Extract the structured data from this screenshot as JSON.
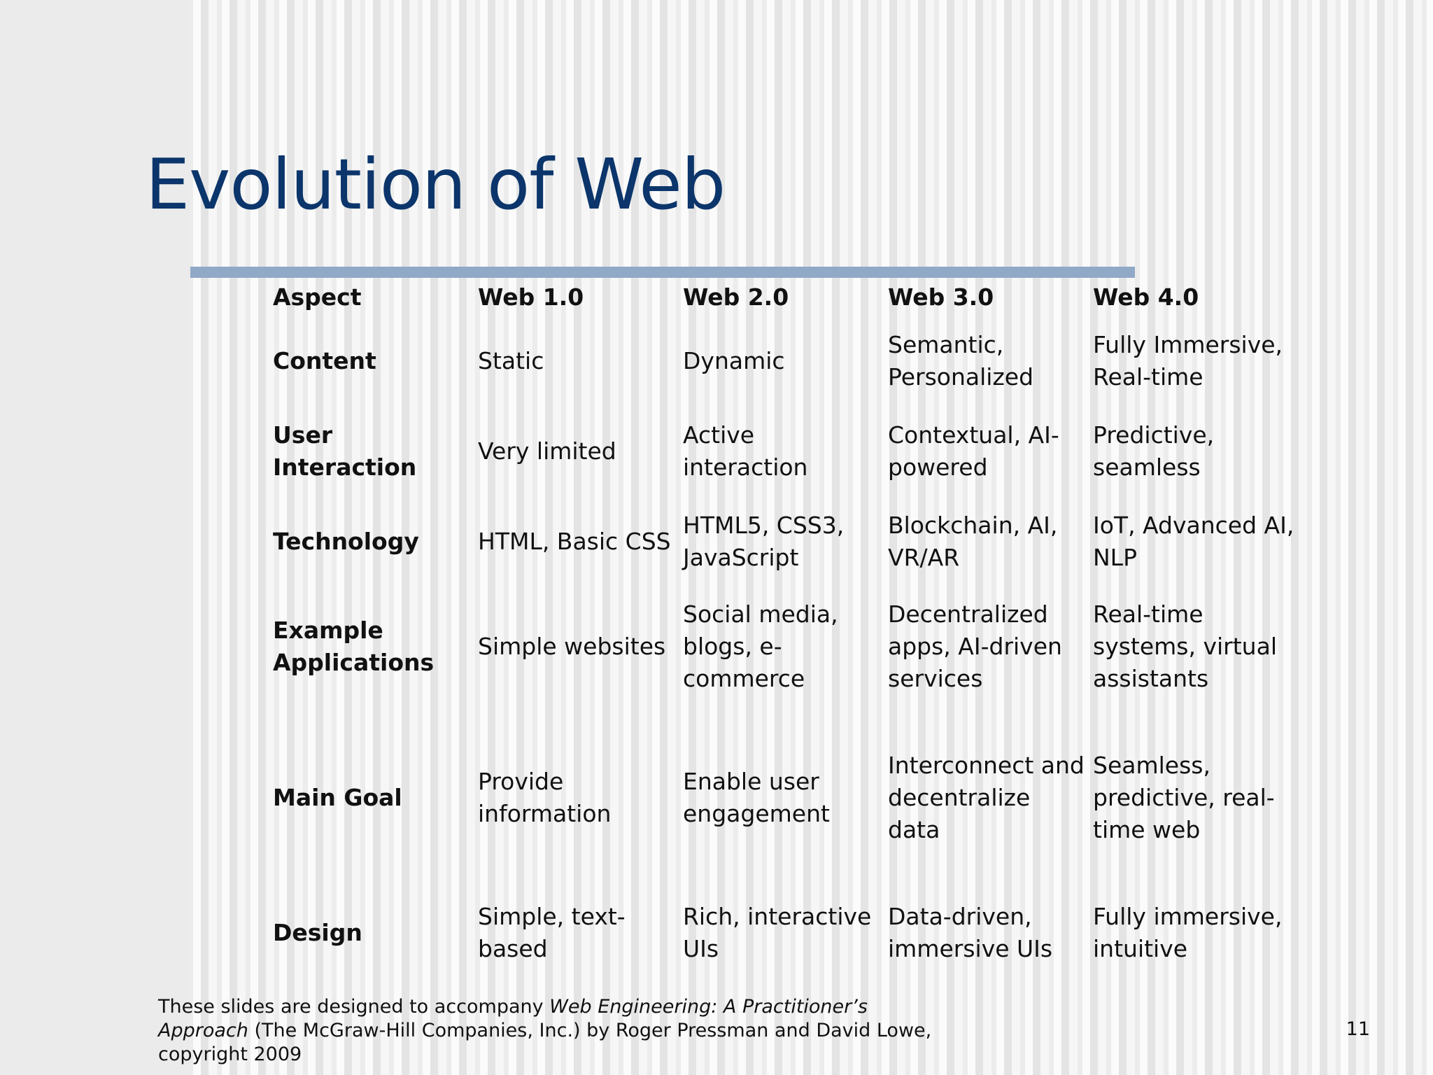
{
  "slide": {
    "title": "Evolution of Web",
    "page_number": "11",
    "footer": {
      "prefix": "These slides are designed to accompany ",
      "book_title": "Web Engineering: A Practitioner’s Approach",
      "suffix": " (The McGraw-Hill Companies, Inc.) by Roger Pressman and David Lowe, copyright 2009"
    },
    "colors": {
      "title": "#0b356b",
      "title_rule": "#90a9c6"
    }
  },
  "table": {
    "headers": [
      "Aspect",
      "Web 1.0",
      "Web 2.0",
      "Web 3.0",
      "Web 4.0"
    ],
    "rows": [
      [
        "Content",
        "Static",
        "Dynamic",
        "Semantic, Personalized",
        "Fully Immersive, Real-time"
      ],
      [
        "User Interaction",
        "Very limited",
        "Active interaction",
        "Contextual, AI-powered",
        "Predictive, seamless"
      ],
      [
        "Technology",
        "HTML, Basic CSS",
        "HTML5, CSS3, JavaScript",
        "Blockchain, AI, VR/AR",
        "IoT, Advanced AI, NLP"
      ],
      [
        "Example Applications",
        "Simple websites",
        "Social media, blogs, e-commerce",
        "Decentralized apps, AI-driven services",
        "Real-time systems, virtual assistants"
      ],
      [
        "Main Goal",
        "Provide information",
        "Enable user engagement",
        "Interconnect and decentralize data",
        "Seamless, predictive, real-time web"
      ],
      [
        "Design",
        "Simple, text-based",
        "Rich, interactive UIs",
        "Data-driven, immersive UIs",
        "Fully immersive, intuitive"
      ]
    ]
  }
}
